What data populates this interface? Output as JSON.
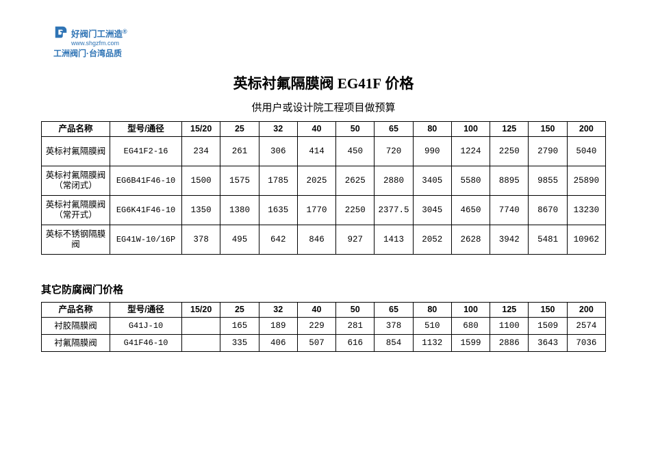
{
  "logo": {
    "line1": "好阀门工洲造",
    "reg": "®",
    "url": "www.shgzfm.com",
    "line2": "工洲阀门·台湾品质",
    "color": "#2f74b5"
  },
  "title_prefix": "英标衬氟隔膜阀 ",
  "title_code": "EG41F",
  "title_suffix": " 价格",
  "subtitle": "供用户或设计院工程项目做预算",
  "columns": [
    "产品名称",
    "型号/通径",
    "15/20",
    "25",
    "32",
    "40",
    "50",
    "65",
    "80",
    "100",
    "125",
    "150",
    "200"
  ],
  "table1": {
    "rows": [
      {
        "name": "英标衬氟隔膜阀",
        "model": "EG41F2-16",
        "vals": [
          "234",
          "261",
          "306",
          "414",
          "450",
          "720",
          "990",
          "1224",
          "2250",
          "2790",
          "5040"
        ]
      },
      {
        "name": "英标衬氟隔膜阀\n（常闭式）",
        "model": "EG6B41F46-10",
        "vals": [
          "1500",
          "1575",
          "1785",
          "2025",
          "2625",
          "2880",
          "3405",
          "5580",
          "8895",
          "9855",
          "25890"
        ]
      },
      {
        "name": "英标衬氟隔膜阀\n（常开式）",
        "model": "EG6K41F46-10",
        "vals": [
          "1350",
          "1380",
          "1635",
          "1770",
          "2250",
          "2377.5",
          "3045",
          "4650",
          "7740",
          "8670",
          "13230"
        ]
      },
      {
        "name": "英标不锈钢隔膜阀",
        "model": "EG41W-10/16P",
        "vals": [
          "378",
          "495",
          "642",
          "846",
          "927",
          "1413",
          "2052",
          "2628",
          "3942",
          "5481",
          "10962"
        ]
      }
    ]
  },
  "section2_title": "其它防腐阀门价格",
  "table2": {
    "rows": [
      {
        "name": "衬胶隔膜阀",
        "model": "G41J-10",
        "vals": [
          "",
          "165",
          "189",
          "229",
          "281",
          "378",
          "510",
          "680",
          "1100",
          "1509",
          "2574"
        ]
      },
      {
        "name": "衬氟隔膜阀",
        "model": "G41F46-10",
        "vals": [
          "",
          "335",
          "406",
          "507",
          "616",
          "854",
          "1132",
          "1599",
          "2886",
          "3643",
          "7036"
        ]
      }
    ]
  }
}
